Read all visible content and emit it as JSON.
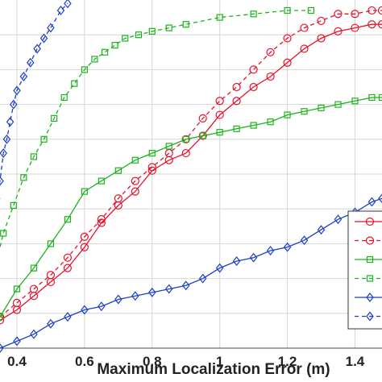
{
  "chart_data": {
    "type": "line",
    "xlabel": "Maximum Localization Error (m)",
    "ylabel": "",
    "title": "",
    "xlim": [
      0.35,
      1.48
    ],
    "ylim": [
      0,
      1
    ],
    "x_ticks": [
      "0.4",
      "0.6",
      "0.8",
      "1",
      "1.2",
      "1.4"
    ],
    "x_tick_values": [
      0.4,
      0.6,
      0.8,
      1.0,
      1.2,
      1.4
    ],
    "y_grid_values": [
      0.1,
      0.2,
      0.3,
      0.4,
      0.5,
      0.6,
      0.7,
      0.8,
      0.9
    ],
    "grid": true,
    "legend_placement": "bottom-right (partially visible)",
    "series": [
      {
        "color": "#e8102a",
        "dash": "solid",
        "marker": "circle",
        "x": [
          0.35,
          0.4,
          0.45,
          0.5,
          0.55,
          0.6,
          0.65,
          0.7,
          0.75,
          0.8,
          0.85,
          0.9,
          0.95,
          1.0,
          1.05,
          1.1,
          1.15,
          1.2,
          1.25,
          1.3,
          1.35,
          1.4,
          1.45,
          1.48
        ],
        "y": [
          0.08,
          0.11,
          0.15,
          0.19,
          0.23,
          0.29,
          0.36,
          0.41,
          0.45,
          0.51,
          0.54,
          0.56,
          0.61,
          0.67,
          0.71,
          0.75,
          0.78,
          0.82,
          0.86,
          0.89,
          0.91,
          0.92,
          0.93,
          0.93
        ]
      },
      {
        "color": "#e8102a",
        "dash": "dashed",
        "marker": "circle",
        "x": [
          0.35,
          0.4,
          0.45,
          0.5,
          0.55,
          0.6,
          0.65,
          0.7,
          0.75,
          0.8,
          0.85,
          0.9,
          0.95,
          1.0,
          1.05,
          1.1,
          1.15,
          1.2,
          1.25,
          1.3,
          1.35,
          1.4,
          1.45,
          1.48
        ],
        "y": [
          0.09,
          0.13,
          0.17,
          0.21,
          0.26,
          0.32,
          0.37,
          0.43,
          0.48,
          0.52,
          0.56,
          0.6,
          0.66,
          0.71,
          0.75,
          0.8,
          0.85,
          0.89,
          0.92,
          0.94,
          0.96,
          0.96,
          0.97,
          0.97
        ]
      },
      {
        "color": "#1bb31b",
        "dash": "solid",
        "marker": "square",
        "x": [
          0.35,
          0.4,
          0.45,
          0.5,
          0.55,
          0.6,
          0.65,
          0.7,
          0.75,
          0.8,
          0.85,
          0.9,
          0.95,
          1.0,
          1.05,
          1.1,
          1.15,
          1.2,
          1.25,
          1.3,
          1.35,
          1.4,
          1.45,
          1.48
        ],
        "y": [
          0.09,
          0.17,
          0.23,
          0.3,
          0.37,
          0.45,
          0.48,
          0.51,
          0.54,
          0.56,
          0.58,
          0.6,
          0.61,
          0.62,
          0.63,
          0.64,
          0.65,
          0.67,
          0.68,
          0.69,
          0.7,
          0.71,
          0.72,
          0.72
        ]
      },
      {
        "color": "#1bb31b",
        "dash": "dashed",
        "marker": "square",
        "x": [
          0.33,
          0.36,
          0.39,
          0.42,
          0.45,
          0.48,
          0.51,
          0.54,
          0.57,
          0.6,
          0.63,
          0.66,
          0.69,
          0.72,
          0.76,
          0.8,
          0.85,
          0.9,
          1.0,
          1.1,
          1.2,
          1.27
        ],
        "y": [
          0.21,
          0.33,
          0.41,
          0.49,
          0.55,
          0.6,
          0.66,
          0.72,
          0.76,
          0.8,
          0.83,
          0.85,
          0.87,
          0.89,
          0.9,
          0.91,
          0.92,
          0.93,
          0.95,
          0.96,
          0.97,
          0.97
        ]
      },
      {
        "color": "#1c3fc4",
        "dash": "solid",
        "marker": "diamond",
        "x": [
          0.35,
          0.4,
          0.45,
          0.5,
          0.55,
          0.6,
          0.65,
          0.7,
          0.75,
          0.8,
          0.85,
          0.9,
          0.95,
          1.0,
          1.05,
          1.1,
          1.15,
          1.2,
          1.25,
          1.3,
          1.35,
          1.4,
          1.45,
          1.48
        ],
        "y": [
          0.0,
          0.02,
          0.04,
          0.07,
          0.09,
          0.11,
          0.12,
          0.14,
          0.15,
          0.16,
          0.17,
          0.18,
          0.2,
          0.23,
          0.25,
          0.26,
          0.28,
          0.29,
          0.31,
          0.34,
          0.37,
          0.39,
          0.42,
          0.43
        ]
      },
      {
        "color": "#1c3fc4",
        "dash": "dashed",
        "marker": "diamond",
        "x": [
          0.34,
          0.35,
          0.36,
          0.37,
          0.38,
          0.39,
          0.4,
          0.42,
          0.44,
          0.46,
          0.48,
          0.5,
          0.53,
          0.55
        ],
        "y": [
          0.43,
          0.48,
          0.56,
          0.6,
          0.65,
          0.7,
          0.74,
          0.78,
          0.82,
          0.86,
          0.89,
          0.92,
          0.97,
          0.99
        ]
      }
    ]
  }
}
